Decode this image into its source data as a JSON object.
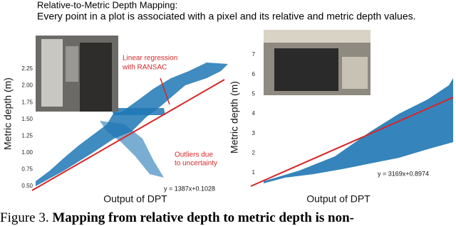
{
  "header": {
    "title": "Relative-to-Metric Depth Mapping:",
    "subtitle": "Every point in a plot is associated with a pixel and its relative and metric depth values."
  },
  "left_plot": {
    "y_label": "Metric depth (m)",
    "x_label": "Output of DPT",
    "yticks": [
      "2.25",
      "2.00",
      "1.75",
      "1.50",
      "1.25",
      "1.00",
      "0.75",
      "0.50"
    ],
    "annotation_regression": [
      "Linear regression",
      "with RANSAC"
    ],
    "annotation_outliers": [
      "Outliers due",
      "to uncertainty"
    ],
    "equation": "y = 1387x+0.1028"
  },
  "right_plot": {
    "y_label": "Metric depth (m)",
    "x_label": "Output of DPT",
    "yticks": [
      "7",
      "6",
      "5",
      "4",
      "3",
      "2",
      "1"
    ],
    "equation": "y = 3169x+0.8974"
  },
  "caption": {
    "label": "Figure 3.",
    "text": "Mapping from relative depth to metric depth is non-"
  }
}
